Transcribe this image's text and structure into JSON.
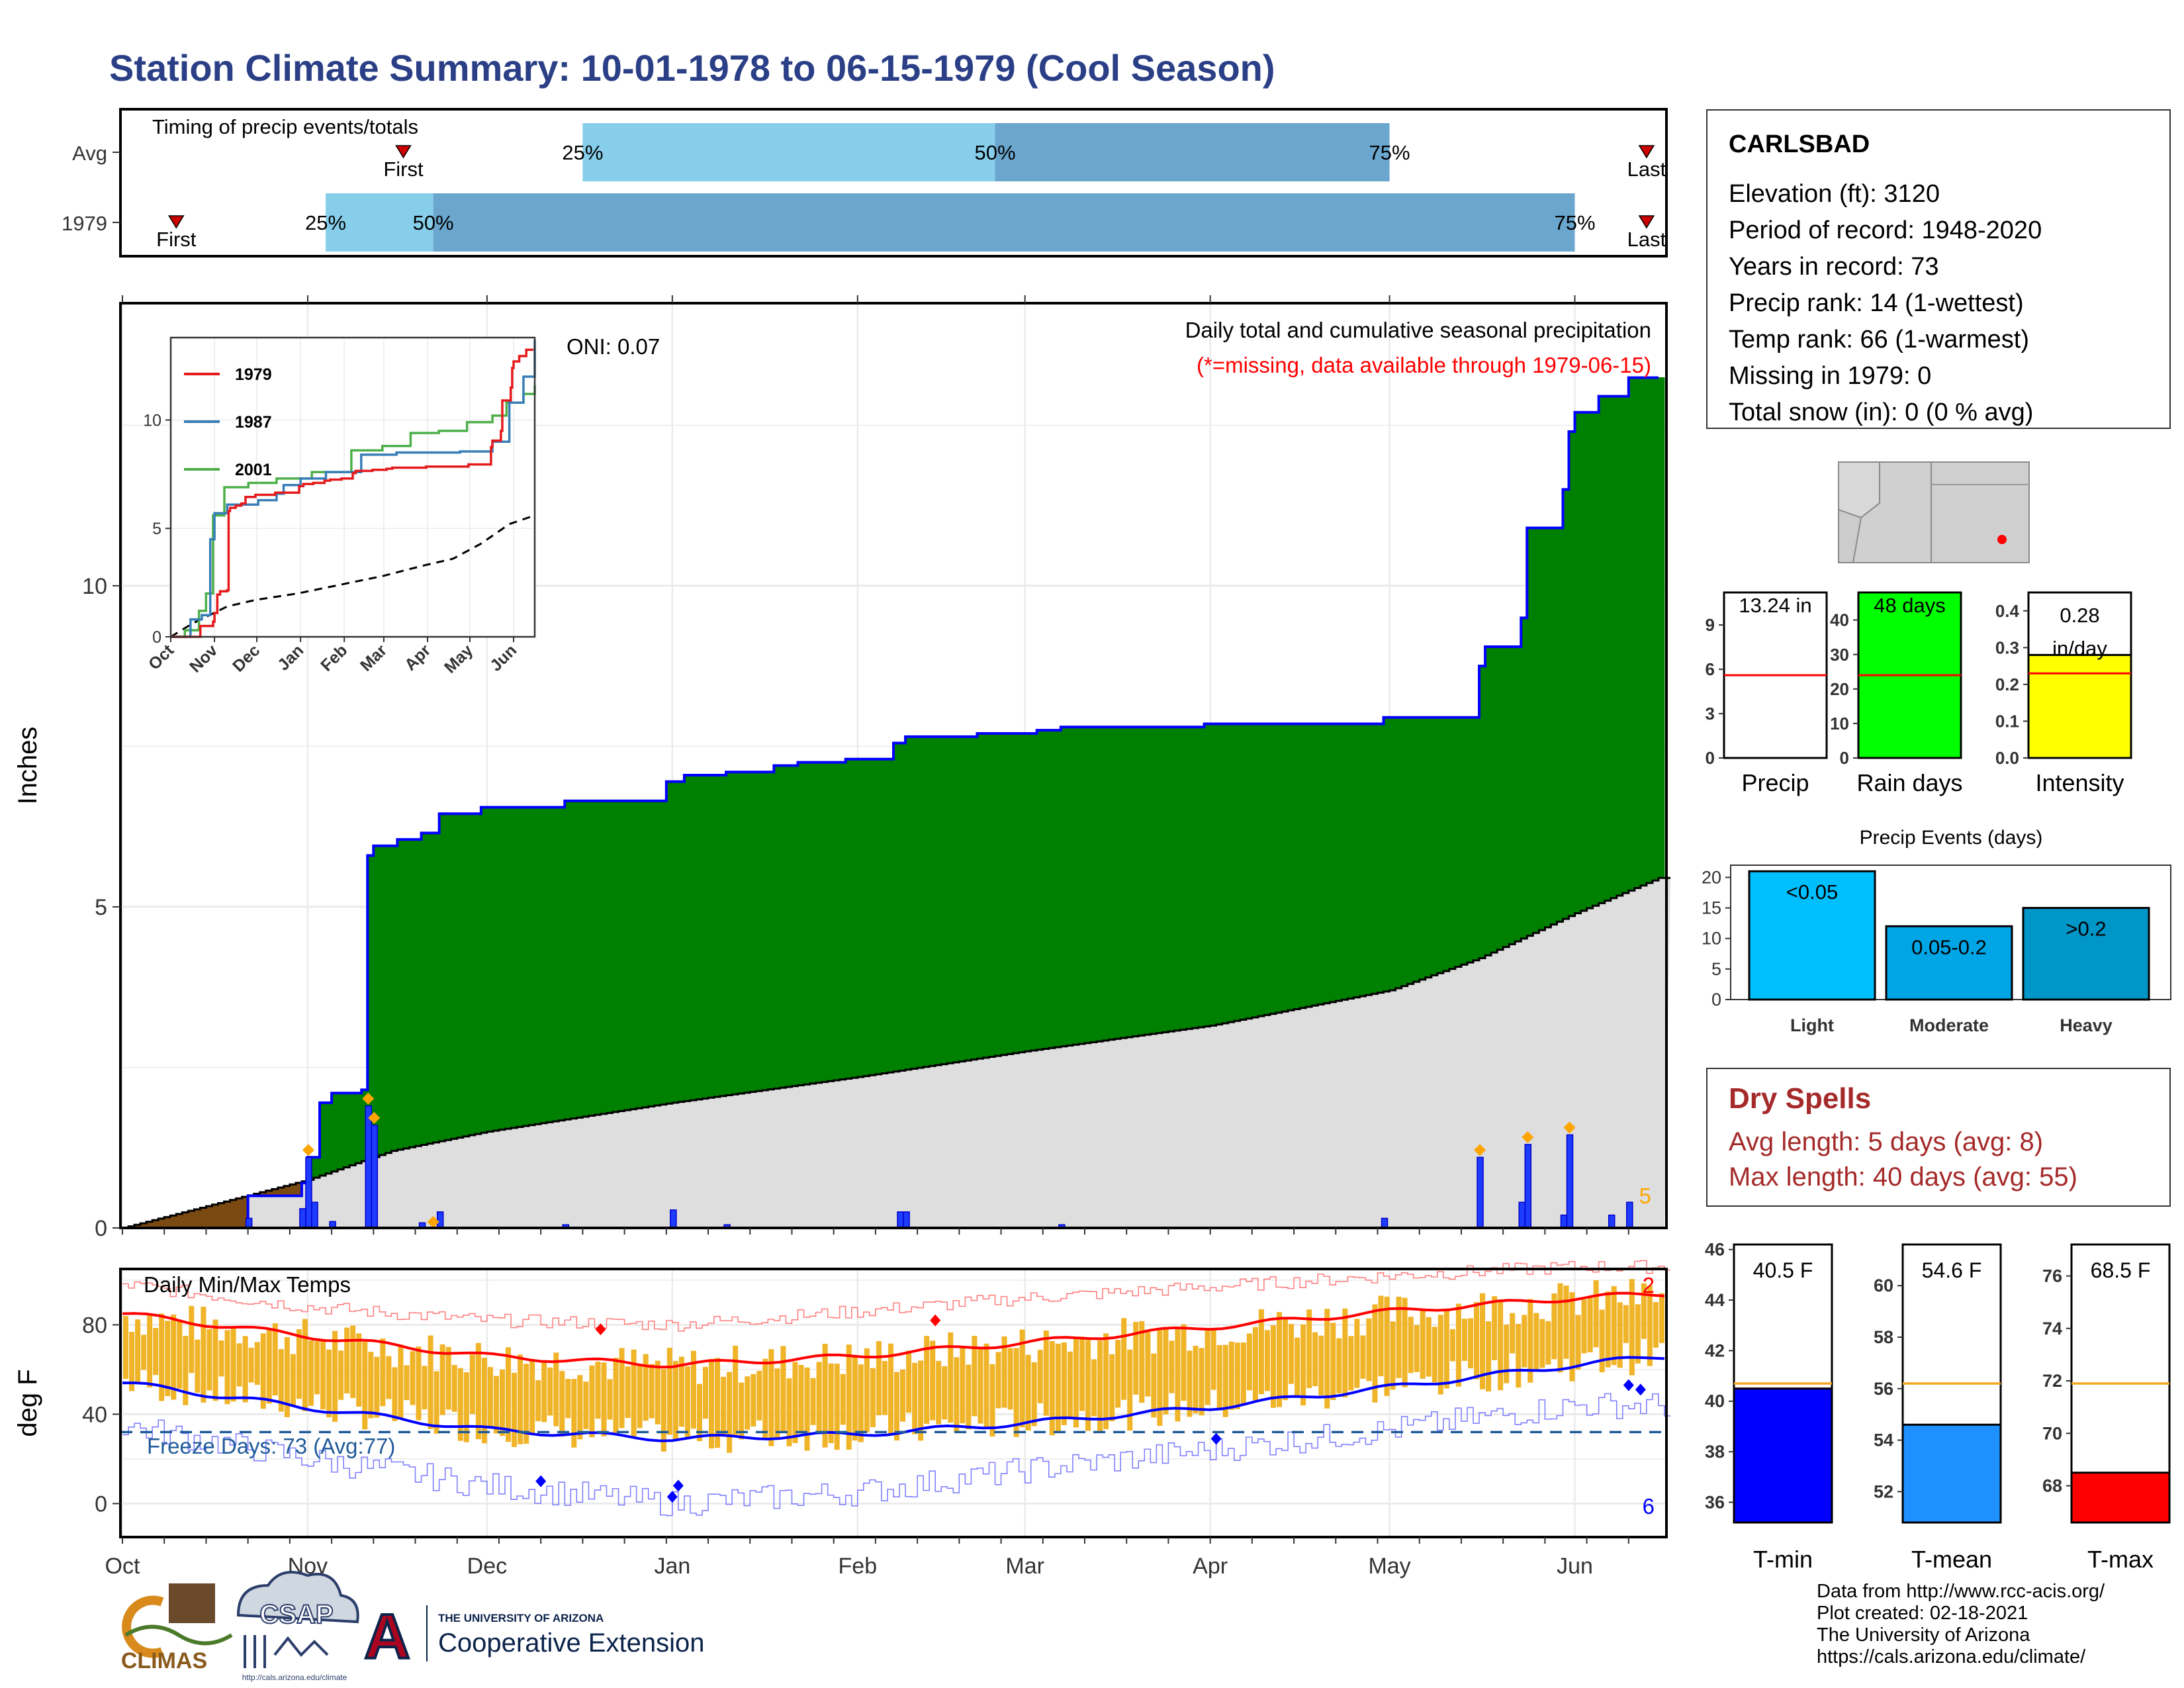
{
  "title": "Station Climate Summary: 10-01-1978 to 06-15-1979 (Cool Season)",
  "timing": {
    "label": "Timing of precip events/totals",
    "rows": [
      {
        "name": "Avg",
        "first": "Nov 17",
        "last": "Jun 13",
        "p25": "Dec 17",
        "p50": "Feb 24",
        "p75": "May 1"
      },
      {
        "name": "1979",
        "first": "Oct 10",
        "last": "Jun 13",
        "p25": "Nov 4",
        "p50": "Nov 22",
        "p75": "Jun 1"
      }
    ],
    "labels": {
      "first": "First",
      "last": "Last",
      "p25": "25%",
      "p50": "50%",
      "p75": "75%"
    },
    "colors": {
      "light": "#87ceeb",
      "dark": "#6aa6cd",
      "marker": "#cc0000"
    }
  },
  "precip_annotation": {
    "title": "Daily total and cumulative seasonal precipitation",
    "missing_note": "(*=missing, data available through 1979-06-15)",
    "oni": "ONI: 0.07",
    "corner_count": "5"
  },
  "precip_axis": {
    "ylabel": "Inches",
    "yticks": [
      0,
      5,
      10
    ],
    "ylim": [
      0,
      14.4
    ]
  },
  "months": [
    "Oct",
    "Nov",
    "Dec",
    "Jan",
    "Feb",
    "Mar",
    "Apr",
    "May",
    "Jun"
  ],
  "inset": {
    "months": [
      "Oct",
      "Nov",
      "Dec",
      "Jan",
      "Feb",
      "Mar",
      "Apr",
      "May",
      "Jun"
    ],
    "yticks": [
      0,
      5,
      10
    ],
    "legend": [
      {
        "name": "1979",
        "color": "#e41a1c"
      },
      {
        "name": "1987",
        "color": "#377eb8"
      },
      {
        "name": "2001",
        "color": "#4daf4a"
      }
    ]
  },
  "temp_axis": {
    "title": "Daily Min/Max Temps",
    "ylabel": "deg F",
    "yticks": [
      0,
      40,
      80
    ],
    "ylim": [
      -15,
      105
    ],
    "freeze_label": "Freeze Days: 73 (Avg:77)",
    "count_high": "2",
    "count_low": "6"
  },
  "mini_precip": [
    {
      "label": "Precip",
      "value_text": "13.24 in",
      "value": 13.24,
      "ymax": 11.2,
      "avg": 5.6,
      "yticks": [
        0,
        3,
        6,
        9
      ],
      "tick_labels": [
        "0",
        "3",
        "6",
        "9"
      ],
      "color": "#ffffff"
    },
    {
      "label": "Rain days",
      "value_text": "48 days",
      "value": 48,
      "ymax": 48,
      "avg": 24,
      "yticks": [
        0,
        10,
        20,
        30,
        40
      ],
      "tick_labels": [
        "0",
        "10",
        "20",
        "30",
        "40"
      ],
      "color": "#00ff00"
    },
    {
      "label": "Intensity",
      "value_text": "0.28 in/day",
      "value": 0.28,
      "ymax": 0.45,
      "avg": 0.23,
      "yticks": [
        0,
        0.1,
        0.2,
        0.3,
        0.4
      ],
      "tick_labels": [
        "0.0",
        "0.1",
        "0.2",
        "0.3",
        "0.4"
      ],
      "color": "#ffff00"
    }
  ],
  "precip_events": {
    "title": "Precip Events (days)",
    "categories": [
      "Light",
      "Moderate",
      "Heavy"
    ],
    "bar_labels": [
      "<0.05",
      "0.05-0.2",
      ">0.2"
    ],
    "values": [
      21,
      12,
      15
    ],
    "ymax": 22,
    "yticks": [
      0,
      5,
      10,
      15,
      20
    ],
    "colors": [
      "#00bfff",
      "#00a5e6",
      "#0096c8"
    ]
  },
  "mini_temp": [
    {
      "label": "T-min",
      "value_text": "40.5 F",
      "value": 40.5,
      "avg": 40.7,
      "ymin": 35.2,
      "ymax": 46.2,
      "yticks": [
        36,
        38,
        40,
        42,
        44,
        46
      ],
      "color": "#0000ff"
    },
    {
      "label": "T-mean",
      "value_text": "54.6 F",
      "value": 54.6,
      "avg": 56.2,
      "ymin": 50.8,
      "ymax": 61.6,
      "yticks": [
        52,
        54,
        56,
        58,
        60
      ],
      "color": "#1e90ff"
    },
    {
      "label": "T-max",
      "value_text": "68.5 F",
      "value": 68.5,
      "avg": 71.9,
      "ymin": 66.6,
      "ymax": 77.2,
      "yticks": [
        68,
        70,
        72,
        74,
        76
      ],
      "color": "#ff0000"
    }
  ],
  "station": {
    "name": "CARLSBAD",
    "lines": [
      "Elevation (ft): 3120",
      "Period of record: 1948-2020",
      "Years in record: 73",
      "Precip rank: 14 (1-wettest)",
      "Temp rank: 66 (1-warmest)",
      "Missing in 1979: 0",
      "Total snow (in): 0 (0 % avg)"
    ]
  },
  "dry_spells": {
    "title": "Dry Spells",
    "lines": [
      "Avg length: 5 days (avg: 8)",
      "Max length: 40 days (avg: 55)"
    ]
  },
  "footer": [
    "Data from http://www.rcc-acis.org/",
    "Plot created: 02-18-2021",
    "The University of Arizona",
    "https://cals.arizona.edu/climate/"
  ],
  "logos": {
    "climas": "CLIMAS",
    "csap": "CSAP",
    "csap_url": "http://cals.arizona.edu/climate",
    "ua_small": "THE UNIVERSITY OF ARIZONA",
    "ua_big": "Cooperative Extension",
    "ua_letter": "A"
  },
  "chart_data": [
    {
      "type": "area",
      "title": "Daily total and cumulative seasonal precipitation",
      "ylabel": "Inches",
      "ylim": [
        0,
        14.4
      ],
      "x_start": "1978-10-01",
      "x_end": "1979-06-15",
      "series": [
        {
          "name": "1979",
          "kind": "cumulative",
          "points": [
            [
              "1978-10-01",
              0
            ],
            [
              "1978-10-22",
              0.5
            ],
            [
              "1978-10-31",
              0.7
            ],
            [
              "1978-11-01",
              1.1
            ],
            [
              "1978-11-03",
              1.95
            ],
            [
              "1978-11-05",
              2.1
            ],
            [
              "1978-11-10",
              2.15
            ],
            [
              "1978-11-11",
              5.8
            ],
            [
              "1978-11-12",
              5.95
            ],
            [
              "1978-11-16",
              6.05
            ],
            [
              "1978-11-20",
              6.15
            ],
            [
              "1978-11-23",
              6.45
            ],
            [
              "1978-11-30",
              6.55
            ],
            [
              "1978-12-14",
              6.65
            ],
            [
              "1978-12-31",
              6.95
            ],
            [
              "1979-01-03",
              7.05
            ],
            [
              "1979-01-10",
              7.1
            ],
            [
              "1979-01-18",
              7.2
            ],
            [
              "1979-01-22",
              7.25
            ],
            [
              "1979-01-30",
              7.3
            ],
            [
              "1979-02-07",
              7.55
            ],
            [
              "1979-02-09",
              7.65
            ],
            [
              "1979-02-21",
              7.7
            ],
            [
              "1979-03-03",
              7.75
            ],
            [
              "1979-03-07",
              7.8
            ],
            [
              "1979-03-31",
              7.85
            ],
            [
              "1979-04-30",
              7.95
            ],
            [
              "1979-05-16",
              8.75
            ],
            [
              "1979-05-17",
              9.05
            ],
            [
              "1979-05-23",
              9.5
            ],
            [
              "1979-05-24",
              10.9
            ],
            [
              "1979-05-30",
              11.5
            ],
            [
              "1979-05-31",
              12.4
            ],
            [
              "1979-06-01",
              12.7
            ],
            [
              "1979-06-05",
              12.95
            ],
            [
              "1979-06-10",
              13.24
            ],
            [
              "1979-06-15",
              13.24
            ]
          ]
        },
        {
          "name": "Avg",
          "kind": "cumulative",
          "points": [
            [
              "1978-10-01",
              0
            ],
            [
              "1978-11-01",
              0.75
            ],
            [
              "1978-11-15",
              1.2
            ],
            [
              "1978-12-01",
              1.5
            ],
            [
              "1979-01-01",
              1.95
            ],
            [
              "1979-02-01",
              2.35
            ],
            [
              "1979-03-01",
              2.75
            ],
            [
              "1979-04-01",
              3.15
            ],
            [
              "1979-05-01",
              3.7
            ],
            [
              "1979-05-16",
              4.2
            ],
            [
              "1979-06-01",
              4.9
            ],
            [
              "1979-06-15",
              5.45
            ]
          ]
        },
        {
          "name": "Daily",
          "kind": "daily",
          "points": [
            [
              "1978-10-22",
              0.15
            ],
            [
              "1978-10-31",
              0.3
            ],
            [
              "1978-11-01",
              1.1
            ],
            [
              "1978-11-02",
              0.4
            ],
            [
              "1978-11-05",
              0.1
            ],
            [
              "1978-11-11",
              1.9
            ],
            [
              "1978-11-12",
              1.6
            ],
            [
              "1978-11-20",
              0.08
            ],
            [
              "1978-11-23",
              0.25
            ],
            [
              "1978-12-14",
              0.05
            ],
            [
              "1979-01-01",
              0.28
            ],
            [
              "1979-01-10",
              0.05
            ],
            [
              "1979-02-08",
              0.25
            ],
            [
              "1979-02-09",
              0.25
            ],
            [
              "1979-03-07",
              0.05
            ],
            [
              "1979-04-30",
              0.15
            ],
            [
              "1979-05-16",
              1.1
            ],
            [
              "1979-05-23",
              0.4
            ],
            [
              "1979-05-24",
              1.3
            ],
            [
              "1979-05-30",
              0.2
            ],
            [
              "1979-05-31",
              1.45
            ],
            [
              "1979-06-07",
              0.2
            ],
            [
              "1979-06-10",
              0.4
            ]
          ]
        }
      ]
    },
    {
      "type": "line",
      "title": "Daily Min/Max Temps",
      "ylabel": "deg F",
      "ylim": [
        -15,
        105
      ],
      "series": [
        {
          "name": "Normal max",
          "points": [
            [
              "1978-10-01",
              85
            ],
            [
              "1978-11-01",
              75
            ],
            [
              "1978-12-01",
              66
            ],
            [
              "1979-01-01",
              62
            ],
            [
              "1979-02-01",
              66
            ],
            [
              "1979-03-01",
              72
            ],
            [
              "1979-04-01",
              79
            ],
            [
              "1979-05-01",
              86
            ],
            [
              "1979-06-01",
              92
            ],
            [
              "1979-06-15",
              94
            ]
          ]
        },
        {
          "name": "Normal min",
          "points": [
            [
              "1978-10-01",
              54
            ],
            [
              "1978-11-01",
              43
            ],
            [
              "1978-12-01",
              33
            ],
            [
              "1979-01-01",
              29
            ],
            [
              "1979-02-01",
              31
            ],
            [
              "1979-03-01",
              36
            ],
            [
              "1979-04-01",
              43
            ],
            [
              "1979-05-01",
              52
            ],
            [
              "1979-06-01",
              62
            ],
            [
              "1979-06-15",
              66
            ]
          ]
        },
        {
          "name": "Record max",
          "points": [
            [
              "1978-10-01",
              98
            ],
            [
              "1978-11-01",
              88
            ],
            [
              "1978-12-01",
              82
            ],
            [
              "1979-01-01",
              80
            ],
            [
              "1979-02-01",
              86
            ],
            [
              "1979-03-01",
              92
            ],
            [
              "1979-04-01",
              97
            ],
            [
              "1979-05-01",
              102
            ],
            [
              "1979-06-01",
              106
            ]
          ]
        },
        {
          "name": "Record min",
          "points": [
            [
              "1978-10-01",
              35
            ],
            [
              "1978-11-01",
              20
            ],
            [
              "1978-12-01",
              8
            ],
            [
              "1979-01-01",
              0
            ],
            [
              "1979-02-01",
              5
            ],
            [
              "1979-03-01",
              15
            ],
            [
              "1979-04-01",
              24
            ],
            [
              "1979-05-01",
              33
            ],
            [
              "1979-06-01",
              44
            ]
          ]
        },
        {
          "name": "Freeze line",
          "points": [
            [
              "1978-10-01",
              32
            ],
            [
              "1979-06-15",
              32
            ]
          ]
        }
      ]
    },
    {
      "type": "bar",
      "title": "",
      "categories": [
        "Precip",
        "Rain days",
        "Intensity"
      ],
      "values": [
        13.24,
        48,
        0.28
      ],
      "averages": [
        5.6,
        24,
        0.23
      ]
    },
    {
      "type": "bar",
      "title": "Precip Events (days)",
      "categories": [
        "Light",
        "Moderate",
        "Heavy"
      ],
      "values": [
        21,
        12,
        15
      ]
    },
    {
      "type": "bar",
      "title": "",
      "categories": [
        "T-min",
        "T-mean",
        "T-max"
      ],
      "values": [
        40.5,
        54.6,
        68.5
      ],
      "averages": [
        40.7,
        56.2,
        71.9
      ]
    }
  ]
}
